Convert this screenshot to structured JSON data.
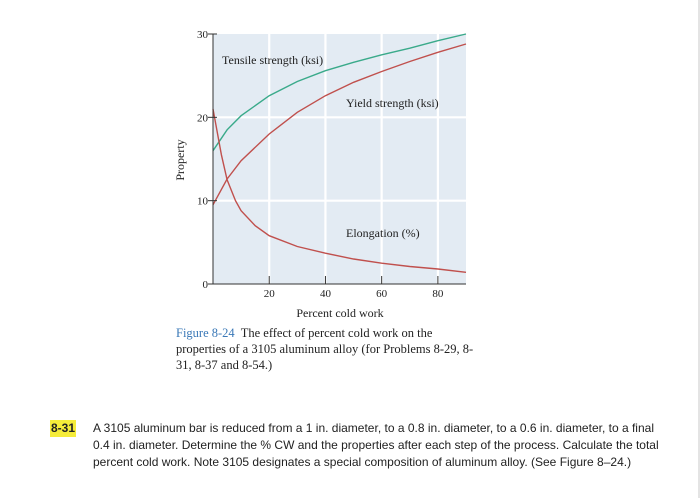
{
  "chart_data": {
    "type": "line",
    "xlabel": "Percent cold work",
    "ylabel": "Property",
    "xlim": [
      0,
      90
    ],
    "ylim": [
      0,
      30
    ],
    "xticks": [
      20,
      40,
      60,
      80
    ],
    "yticks": [
      0,
      10,
      20,
      30
    ],
    "grid": true,
    "series": [
      {
        "name": "Tensile strength (ksi)",
        "color": "#3aaa8a",
        "x": [
          0,
          5,
          10,
          20,
          30,
          40,
          50,
          60,
          70,
          80,
          90
        ],
        "y": [
          16.0,
          18.5,
          20.2,
          22.6,
          24.3,
          25.6,
          26.6,
          27.5,
          28.3,
          29.2,
          30.0
        ]
      },
      {
        "name": "Yield strength (ksi)",
        "color": "#c0504d",
        "x": [
          0,
          5,
          10,
          20,
          30,
          40,
          50,
          60,
          70,
          80,
          90
        ],
        "y": [
          9.5,
          12.6,
          14.8,
          18.0,
          20.6,
          22.6,
          24.2,
          25.5,
          26.7,
          27.8,
          28.8
        ]
      },
      {
        "name": "Elongation (%)",
        "color": "#c0504d",
        "x": [
          0,
          3,
          5,
          8,
          10,
          15,
          20,
          30,
          40,
          50,
          60,
          70,
          80,
          90
        ],
        "y": [
          21.0,
          15.5,
          12.5,
          10.0,
          8.8,
          7.0,
          5.8,
          4.5,
          3.7,
          3.0,
          2.5,
          2.1,
          1.8,
          1.4
        ]
      }
    ]
  },
  "caption": {
    "figure_number": "Figure 8-24",
    "text": "The effect of percent cold work on the properties of a 3105 aluminum alloy (for Problems 8-29, 8-31, 8-37 and 8-54.)"
  },
  "problem": {
    "number": "8-31",
    "text": "A 3105 aluminum bar is reduced from a 1 in. diameter, to a 0.8 in. diameter, to a 0.6 in. diameter, to a final 0.4 in. diameter. Determine the % CW and the properties after each step of the process. Calculate the total percent cold work. Note 3105 designates a special composition of aluminum alloy. (See Figure 8–24.)"
  }
}
